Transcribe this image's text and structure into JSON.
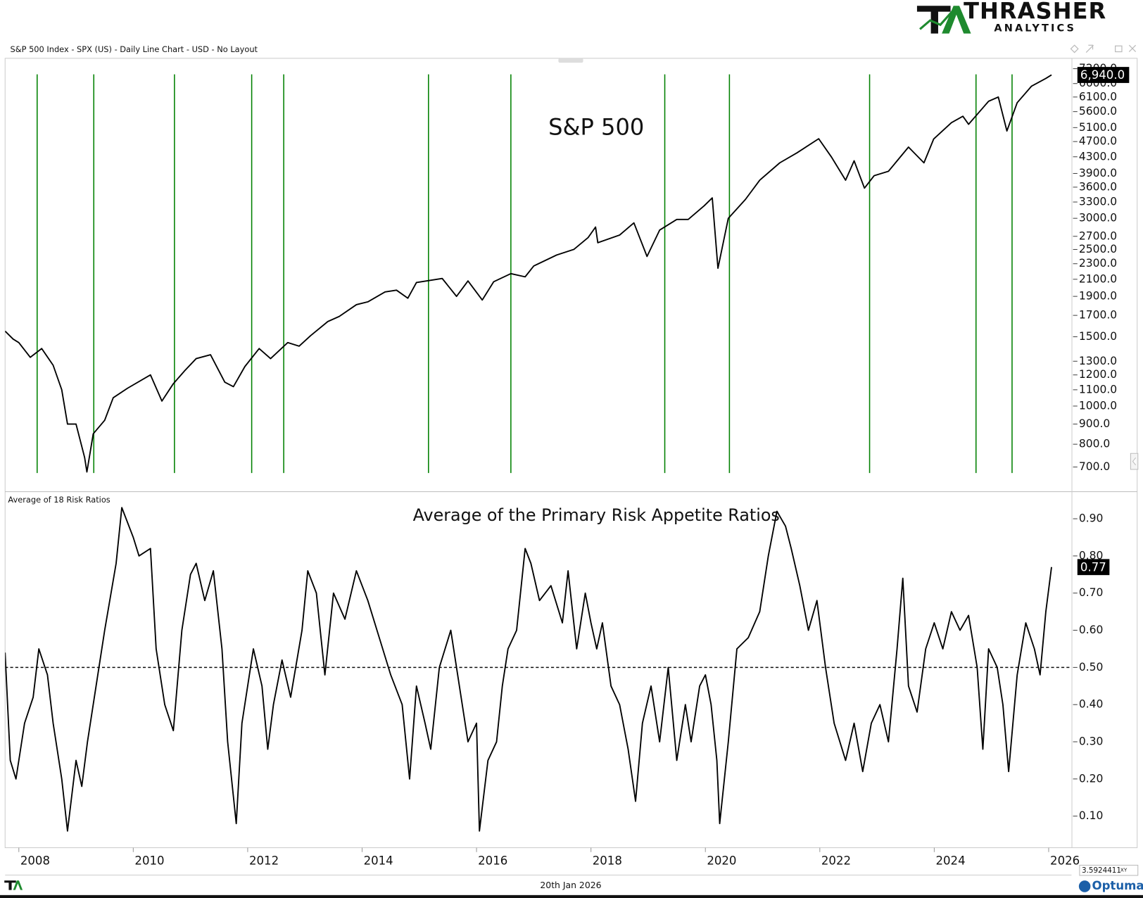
{
  "chart_data": [
    {
      "type": "line",
      "header": "S&P 500 Index - SPX (US) - Daily Line Chart - USD - No Layout",
      "title": "S&P 500",
      "log_scale": true,
      "color": "#000000",
      "event_line_color": "#008000",
      "xlim": [
        2007.76,
        2026.4
      ],
      "ylim": [
        610,
        7650
      ],
      "yticks": [
        {
          "value": 700,
          "label": "700.0"
        },
        {
          "value": 800,
          "label": "800.0"
        },
        {
          "value": 900,
          "label": "900.0"
        },
        {
          "value": 1000,
          "label": "1000.0"
        },
        {
          "value": 1100,
          "label": "1100.0"
        },
        {
          "value": 1200,
          "label": "1200.0"
        },
        {
          "value": 1300,
          "label": "1300.0"
        },
        {
          "value": 1500,
          "label": "1500.0"
        },
        {
          "value": 1700,
          "label": "1700.0"
        },
        {
          "value": 1900,
          "label": "1900.0"
        },
        {
          "value": 2100,
          "label": "2100.0"
        },
        {
          "value": 2300,
          "label": "2300.0"
        },
        {
          "value": 2500,
          "label": "2500.0"
        },
        {
          "value": 2700,
          "label": "2700.0"
        },
        {
          "value": 3000,
          "label": "3000.0"
        },
        {
          "value": 3300,
          "label": "3300.0"
        },
        {
          "value": 3600,
          "label": "3600.0"
        },
        {
          "value": 3900,
          "label": "3900.0"
        },
        {
          "value": 4300,
          "label": "4300.0"
        },
        {
          "value": 4700,
          "label": "4700.0"
        },
        {
          "value": 5100,
          "label": "5100.0"
        },
        {
          "value": 5600,
          "label": "5600.0"
        },
        {
          "value": 6100,
          "label": "6100.0"
        },
        {
          "value": 6600,
          "label": "6600.0"
        },
        {
          "value": 7200,
          "label": "7200.0"
        }
      ],
      "event_lines": [
        2008.32,
        2009.31,
        2010.72,
        2012.07,
        2012.63,
        2015.16,
        2016.6,
        2019.29,
        2020.42,
        2022.87,
        2024.73,
        2025.36
      ],
      "x": [
        2007.76,
        2007.9,
        2008.0,
        2008.2,
        2008.4,
        2008.6,
        2008.75,
        2008.85,
        2009.0,
        2009.15,
        2009.19,
        2009.3,
        2009.5,
        2009.65,
        2009.9,
        2010.3,
        2010.5,
        2010.7,
        2010.9,
        2011.1,
        2011.35,
        2011.6,
        2011.75,
        2011.95,
        2012.2,
        2012.4,
        2012.7,
        2012.9,
        2013.1,
        2013.4,
        2013.6,
        2013.9,
        2014.1,
        2014.4,
        2014.6,
        2014.8,
        2014.95,
        2015.4,
        2015.65,
        2015.85,
        2016.1,
        2016.3,
        2016.6,
        2016.85,
        2017.0,
        2017.4,
        2017.7,
        2017.95,
        2018.08,
        2018.12,
        2018.5,
        2018.75,
        2018.98,
        2019.2,
        2019.5,
        2019.7,
        2019.98,
        2020.12,
        2020.22,
        2020.4,
        2020.7,
        2020.95,
        2021.3,
        2021.6,
        2021.98,
        2022.2,
        2022.45,
        2022.6,
        2022.78,
        2022.95,
        2023.2,
        2023.55,
        2023.82,
        2023.99,
        2024.3,
        2024.5,
        2024.6,
        2024.95,
        2025.12,
        2025.27,
        2025.45,
        2025.7,
        2025.95,
        2026.05
      ],
      "values": [
        1550,
        1480,
        1450,
        1330,
        1400,
        1270,
        1100,
        900,
        900,
        740,
        680,
        850,
        920,
        1050,
        1110,
        1200,
        1030,
        1140,
        1230,
        1320,
        1350,
        1150,
        1120,
        1260,
        1400,
        1320,
        1450,
        1420,
        1510,
        1640,
        1690,
        1810,
        1840,
        1950,
        1970,
        1880,
        2060,
        2110,
        1900,
        2080,
        1860,
        2070,
        2170,
        2130,
        2270,
        2420,
        2500,
        2680,
        2850,
        2600,
        2720,
        2920,
        2400,
        2800,
        2980,
        2980,
        3230,
        3380,
        2240,
        3000,
        3350,
        3750,
        4150,
        4400,
        4780,
        4300,
        3750,
        4200,
        3580,
        3850,
        3950,
        4550,
        4150,
        4770,
        5250,
        5450,
        5200,
        5950,
        6100,
        5000,
        5900,
        6500,
        6800,
        6940
      ],
      "last_label": "6,940.0"
    },
    {
      "type": "line",
      "header": "Average of 18 Risk Ratios",
      "title": "Average of the Primary Risk Appetite Ratios",
      "color": "#000000",
      "ref_line": 0.5,
      "xlim": [
        2007.76,
        2026.4
      ],
      "ylim": [
        0.015,
        0.97
      ],
      "xticks": [
        2008,
        2010,
        2012,
        2014,
        2016,
        2018,
        2020,
        2022,
        2024,
        2026
      ],
      "yticks": [
        {
          "value": 0.1,
          "label": "0.10"
        },
        {
          "value": 0.2,
          "label": "0.20"
        },
        {
          "value": 0.3,
          "label": "0.30"
        },
        {
          "value": 0.4,
          "label": "0.40"
        },
        {
          "value": 0.5,
          "label": "0.50"
        },
        {
          "value": 0.6,
          "label": "0.60"
        },
        {
          "value": 0.7,
          "label": "0.70"
        },
        {
          "value": 0.8,
          "label": "0.80"
        },
        {
          "value": 0.9,
          "label": "0.90"
        }
      ],
      "x": [
        2007.76,
        2007.85,
        2007.95,
        2008.1,
        2008.25,
        2008.35,
        2008.5,
        2008.6,
        2008.75,
        2008.85,
        2009.0,
        2009.1,
        2009.2,
        2009.35,
        2009.5,
        2009.7,
        2009.8,
        2010.0,
        2010.1,
        2010.3,
        2010.4,
        2010.55,
        2010.7,
        2010.85,
        2011.0,
        2011.1,
        2011.25,
        2011.4,
        2011.55,
        2011.65,
        2011.8,
        2011.9,
        2012.1,
        2012.25,
        2012.35,
        2012.45,
        2012.6,
        2012.75,
        2012.95,
        2013.05,
        2013.2,
        2013.35,
        2013.5,
        2013.7,
        2013.9,
        2014.1,
        2014.3,
        2014.5,
        2014.7,
        2014.83,
        2014.95,
        2015.1,
        2015.2,
        2015.35,
        2015.55,
        2015.7,
        2015.85,
        2016.0,
        2016.05,
        2016.2,
        2016.35,
        2016.45,
        2016.55,
        2016.7,
        2016.85,
        2016.95,
        2017.1,
        2017.3,
        2017.5,
        2017.6,
        2017.75,
        2017.9,
        2018.0,
        2018.1,
        2018.2,
        2018.35,
        2018.5,
        2018.65,
        2018.78,
        2018.9,
        2019.05,
        2019.2,
        2019.35,
        2019.5,
        2019.65,
        2019.75,
        2019.9,
        2020.0,
        2020.1,
        2020.2,
        2020.25,
        2020.4,
        2020.55,
        2020.75,
        2020.95,
        2021.1,
        2021.25,
        2021.4,
        2021.5,
        2021.65,
        2021.8,
        2021.95,
        2022.1,
        2022.25,
        2022.45,
        2022.6,
        2022.75,
        2022.9,
        2023.05,
        2023.2,
        2023.35,
        2023.45,
        2023.55,
        2023.7,
        2023.85,
        2024.0,
        2024.15,
        2024.3,
        2024.45,
        2024.6,
        2024.75,
        2024.85,
        2024.95,
        2025.1,
        2025.2,
        2025.3,
        2025.45,
        2025.6,
        2025.75,
        2025.85,
        2025.95,
        2026.05
      ],
      "values": [
        0.54,
        0.25,
        0.2,
        0.35,
        0.42,
        0.55,
        0.48,
        0.35,
        0.2,
        0.06,
        0.25,
        0.18,
        0.3,
        0.45,
        0.6,
        0.78,
        0.93,
        0.85,
        0.8,
        0.82,
        0.55,
        0.4,
        0.33,
        0.6,
        0.75,
        0.78,
        0.68,
        0.76,
        0.55,
        0.3,
        0.08,
        0.35,
        0.55,
        0.45,
        0.28,
        0.4,
        0.52,
        0.42,
        0.6,
        0.76,
        0.7,
        0.48,
        0.7,
        0.63,
        0.76,
        0.68,
        0.58,
        0.48,
        0.4,
        0.2,
        0.45,
        0.35,
        0.28,
        0.5,
        0.6,
        0.45,
        0.3,
        0.35,
        0.06,
        0.25,
        0.3,
        0.45,
        0.55,
        0.6,
        0.82,
        0.78,
        0.68,
        0.72,
        0.62,
        0.76,
        0.55,
        0.7,
        0.62,
        0.55,
        0.62,
        0.45,
        0.4,
        0.28,
        0.14,
        0.35,
        0.45,
        0.3,
        0.5,
        0.25,
        0.4,
        0.3,
        0.45,
        0.48,
        0.4,
        0.25,
        0.08,
        0.3,
        0.55,
        0.58,
        0.65,
        0.8,
        0.92,
        0.88,
        0.82,
        0.72,
        0.6,
        0.68,
        0.5,
        0.35,
        0.25,
        0.35,
        0.22,
        0.35,
        0.4,
        0.3,
        0.55,
        0.74,
        0.45,
        0.38,
        0.55,
        0.62,
        0.55,
        0.65,
        0.6,
        0.64,
        0.5,
        0.28,
        0.55,
        0.5,
        0.4,
        0.22,
        0.48,
        0.62,
        0.55,
        0.48,
        0.65,
        0.77
      ],
      "last_label": "0.77"
    }
  ],
  "brand": {
    "name": "THRASHER",
    "tagline": "ANALYTICS"
  },
  "footer": {
    "date": "20th Jan 2026",
    "readout": "3.5924411",
    "mode": "XY",
    "vendor": "Optuma"
  }
}
